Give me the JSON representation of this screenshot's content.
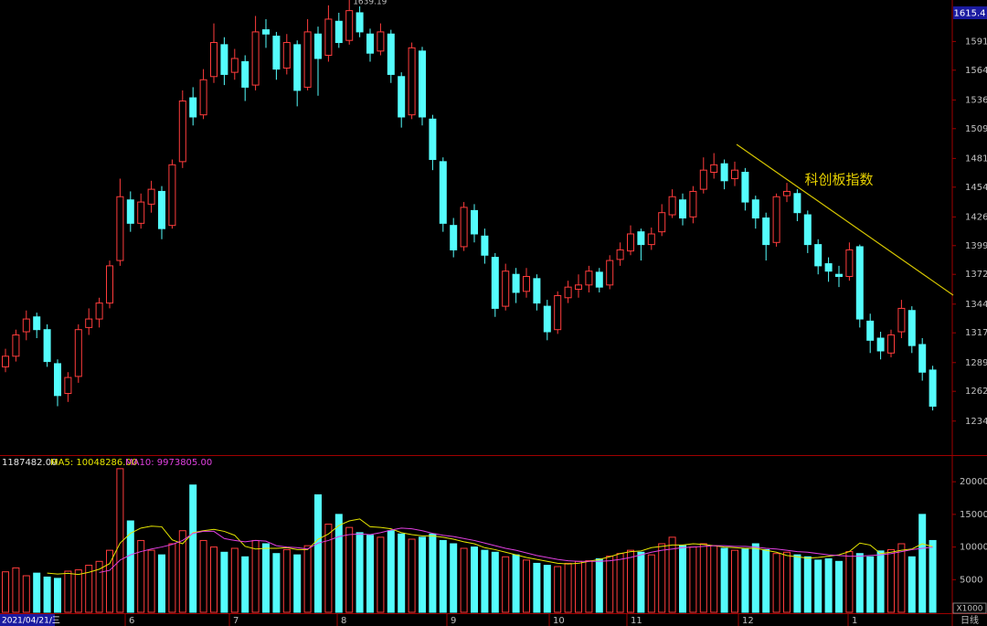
{
  "chart_data": {
    "type": "candlestick",
    "annotation": "科创板指数",
    "price_top_label": "1615.4",
    "start_date": "2021/04/21/三",
    "period": "日线",
    "volume_unit": "X1000",
    "volume_legend": "1187482.00",
    "ma5_legend": "MA5: 10048286.00",
    "ma10_legend": "MA10: 9973805.00",
    "months": [
      "6",
      "7",
      "8",
      "9",
      "10",
      "11",
      "12",
      "1"
    ],
    "up_color": "#ff3c3c",
    "down_color": "#54fcfc",
    "ylim": [
      1202,
      1630
    ],
    "yticks": [
      1234,
      1262,
      1289,
      1317,
      1344,
      1372,
      1399,
      1426,
      1454,
      1481,
      1509,
      1536,
      1564,
      1591
    ],
    "vol_ylim": [
      0,
      23800
    ],
    "vol_yticks": [
      5000,
      10000,
      15000,
      20000
    ],
    "candles": [
      [
        1285,
        1302,
        1280,
        1295
      ],
      [
        1295,
        1320,
        1290,
        1315
      ],
      [
        1318,
        1338,
        1310,
        1330
      ],
      [
        1332,
        1336,
        1312,
        1320
      ],
      [
        1320,
        1325,
        1285,
        1290
      ],
      [
        1288,
        1292,
        1248,
        1258
      ],
      [
        1260,
        1280,
        1252,
        1275
      ],
      [
        1276,
        1325,
        1270,
        1320
      ],
      [
        1322,
        1340,
        1315,
        1330
      ],
      [
        1330,
        1350,
        1322,
        1345
      ],
      [
        1345,
        1385,
        1340,
        1380
      ],
      [
        1385,
        1462,
        1380,
        1445
      ],
      [
        1442,
        1450,
        1412,
        1420
      ],
      [
        1420,
        1448,
        1415,
        1440
      ],
      [
        1438,
        1460,
        1430,
        1452
      ],
      [
        1450,
        1455,
        1405,
        1415
      ],
      [
        1418,
        1480,
        1415,
        1475
      ],
      [
        1478,
        1545,
        1472,
        1535
      ],
      [
        1538,
        1548,
        1512,
        1520
      ],
      [
        1522,
        1565,
        1518,
        1555
      ],
      [
        1558,
        1608,
        1552,
        1590
      ],
      [
        1588,
        1595,
        1550,
        1560
      ],
      [
        1562,
        1584,
        1555,
        1575
      ],
      [
        1572,
        1578,
        1535,
        1548
      ],
      [
        1550,
        1615,
        1545,
        1600
      ],
      [
        1602,
        1612,
        1585,
        1598
      ],
      [
        1596,
        1600,
        1555,
        1565
      ],
      [
        1566,
        1598,
        1560,
        1590
      ],
      [
        1588,
        1592,
        1530,
        1545
      ],
      [
        1548,
        1612,
        1545,
        1600
      ],
      [
        1598,
        1605,
        1540,
        1575
      ],
      [
        1578,
        1625,
        1572,
        1612
      ],
      [
        1610,
        1618,
        1585,
        1590
      ],
      [
        1592,
        1639.19,
        1588,
        1620
      ],
      [
        1618,
        1624,
        1595,
        1600
      ],
      [
        1598,
        1603,
        1572,
        1580
      ],
      [
        1582,
        1608,
        1578,
        1600
      ],
      [
        1598,
        1602,
        1552,
        1560
      ],
      [
        1558,
        1562,
        1510,
        1520
      ],
      [
        1522,
        1590,
        1518,
        1585
      ],
      [
        1582,
        1586,
        1512,
        1520
      ],
      [
        1518,
        1522,
        1470,
        1480
      ],
      [
        1478,
        1482,
        1412,
        1420
      ],
      [
        1418,
        1425,
        1388,
        1395
      ],
      [
        1398,
        1440,
        1394,
        1435
      ],
      [
        1432,
        1438,
        1402,
        1410
      ],
      [
        1408,
        1415,
        1382,
        1390
      ],
      [
        1388,
        1392,
        1332,
        1340
      ],
      [
        1342,
        1382,
        1338,
        1375
      ],
      [
        1372,
        1378,
        1345,
        1355
      ],
      [
        1356,
        1378,
        1350,
        1370
      ],
      [
        1368,
        1372,
        1338,
        1345
      ],
      [
        1342,
        1348,
        1310,
        1318
      ],
      [
        1320,
        1356,
        1316,
        1352
      ],
      [
        1350,
        1366,
        1345,
        1360
      ],
      [
        1358,
        1372,
        1350,
        1362
      ],
      [
        1362,
        1380,
        1355,
        1375
      ],
      [
        1374,
        1378,
        1355,
        1360
      ],
      [
        1362,
        1390,
        1358,
        1385
      ],
      [
        1386,
        1402,
        1380,
        1395
      ],
      [
        1394,
        1418,
        1390,
        1410
      ],
      [
        1412,
        1415,
        1385,
        1400
      ],
      [
        1400,
        1416,
        1395,
        1410
      ],
      [
        1412,
        1438,
        1408,
        1430
      ],
      [
        1428,
        1452,
        1425,
        1445
      ],
      [
        1442,
        1448,
        1418,
        1425
      ],
      [
        1426,
        1455,
        1420,
        1450
      ],
      [
        1452,
        1482,
        1448,
        1470
      ],
      [
        1468,
        1486,
        1462,
        1475
      ],
      [
        1476,
        1480,
        1452,
        1460
      ],
      [
        1462,
        1478,
        1455,
        1470
      ],
      [
        1468,
        1472,
        1432,
        1440
      ],
      [
        1442,
        1446,
        1415,
        1425
      ],
      [
        1425,
        1430,
        1385,
        1400
      ],
      [
        1402,
        1448,
        1398,
        1445
      ],
      [
        1446,
        1458,
        1440,
        1450
      ],
      [
        1448,
        1452,
        1422,
        1430
      ],
      [
        1428,
        1432,
        1392,
        1400
      ],
      [
        1400,
        1405,
        1372,
        1380
      ],
      [
        1382,
        1388,
        1365,
        1375
      ],
      [
        1372,
        1380,
        1360,
        1370
      ],
      [
        1370,
        1402,
        1366,
        1395
      ],
      [
        1398,
        1400,
        1322,
        1330
      ],
      [
        1328,
        1335,
        1298,
        1310
      ],
      [
        1312,
        1318,
        1292,
        1300
      ],
      [
        1298,
        1320,
        1294,
        1315
      ],
      [
        1318,
        1348,
        1312,
        1340
      ],
      [
        1338,
        1342,
        1298,
        1305
      ],
      [
        1306,
        1312,
        1272,
        1280
      ],
      [
        1282,
        1286,
        1244,
        1248
      ]
    ],
    "volumes": [
      6200,
      6800,
      5600,
      6000,
      5400,
      5200,
      6300,
      6500,
      7200,
      7800,
      9500,
      22000,
      14000,
      11000,
      9500,
      8800,
      10500,
      12500,
      19500,
      11000,
      10000,
      9200,
      9800,
      8500,
      11000,
      10500,
      9000,
      9600,
      8800,
      10200,
      18000,
      13500,
      15000,
      13000,
      12200,
      11800,
      11500,
      12500,
      12000,
      11200,
      11500,
      12000,
      11000,
      10500,
      9800,
      10000,
      9500,
      9200,
      8500,
      8800,
      8000,
      7500,
      7200,
      7000,
      7500,
      7800,
      7900,
      8200,
      8600,
      9000,
      9500,
      9200,
      8800,
      10500,
      11500,
      10200,
      10000,
      10500,
      10200,
      9800,
      9500,
      9700,
      10500,
      9600,
      9000,
      9200,
      8800,
      8500,
      8000,
      8200,
      7800,
      9300,
      9000,
      8500,
      9400,
      9600,
      10500,
      8500,
      15000,
      11000
    ],
    "ma5": [
      null,
      null,
      null,
      null,
      6000,
      5860,
      5960,
      5800,
      6120,
      6600,
      7460,
      10600,
      12100,
      12900,
      13200,
      13100,
      11100,
      10500,
      12200,
      12500,
      12700,
      12400,
      11800,
      10100,
      9700,
      9800,
      9800,
      9900,
      9600,
      9600,
      11200,
      12000,
      13300,
      14000,
      14300,
      13100,
      13000,
      12800,
      12200,
      11900,
      11700,
      11700,
      11500,
      11200,
      10800,
      10500,
      9900,
      9600,
      9200,
      8800,
      8400,
      8100,
      7800,
      7500,
      7400,
      7500,
      7800,
      8100,
      8500,
      9000,
      9300,
      9400,
      9900,
      10100,
      10300,
      10300,
      10500,
      10400,
      10200,
      10000,
      9900,
      9800,
      9800,
      9500,
      9200,
      8700,
      8500,
      8300,
      8400,
      8600,
      8800,
      9300,
      10600,
      10300,
      9000,
      9200,
      9500,
      9700,
      10500,
      10048
    ],
    "ma10": [
      null,
      null,
      null,
      null,
      null,
      null,
      null,
      null,
      null,
      6100,
      6430,
      8000,
      8800,
      9300,
      9700,
      10000,
      10400,
      11000,
      12100,
      12400,
      12400,
      11300,
      11000,
      10800,
      11000,
      10900,
      10200,
      10000,
      9900,
      9700,
      10600,
      11000,
      11600,
      11900,
      12000,
      11900,
      12200,
      12600,
      12900,
      12800,
      12500,
      12100,
      11800,
      11600,
      11300,
      11000,
      10600,
      10200,
      9800,
      9500,
      9100,
      8700,
      8400,
      8100,
      7900,
      7800,
      7800,
      7800,
      7900,
      8100,
      8400,
      8800,
      9200,
      9500,
      9700,
      9900,
      10000,
      10100,
      10200,
      10200,
      10100,
      10100,
      10000,
      9800,
      9700,
      9500,
      9300,
      9200,
      9000,
      8800,
      8700,
      8600,
      8600,
      8700,
      8800,
      9000,
      9300,
      9600,
      9800,
      9974
    ],
    "ma5_color": "#e6e600",
    "ma10_color": "#e040e0"
  }
}
